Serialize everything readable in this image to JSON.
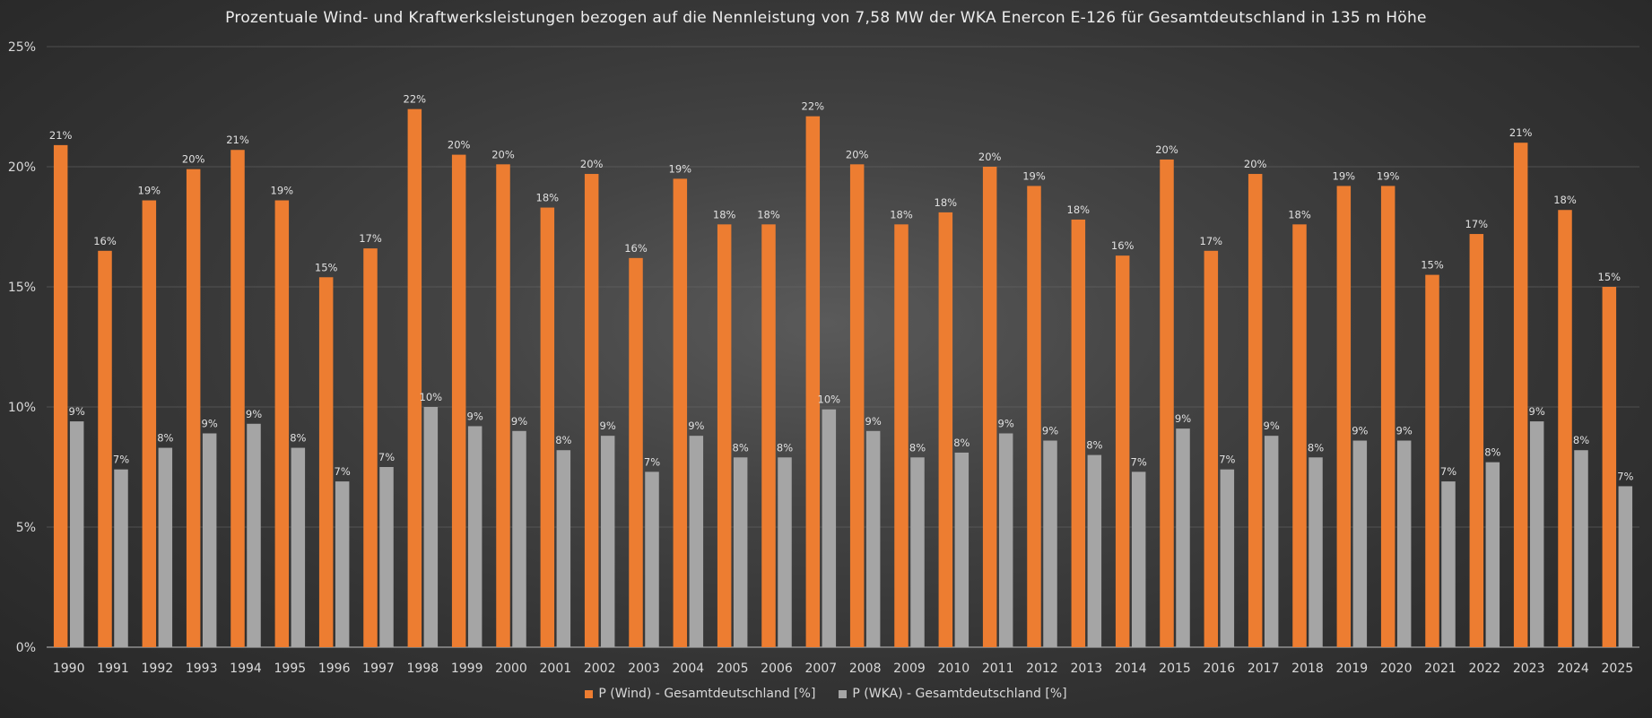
{
  "chart_data": {
    "type": "bar",
    "title": "Prozentuale Wind- und Kraftwerksleistungen bezogen auf die Nennleistung von 7,58 MW der WKA Enercon E-126 für Gesamtdeutschland in 135 m Höhe",
    "xlabel": "",
    "ylabel": "",
    "ylim": [
      0,
      25
    ],
    "yticks": [
      "0%",
      "5%",
      "10%",
      "15%",
      "20%",
      "25%"
    ],
    "ytick_values": [
      0,
      5,
      10,
      15,
      20,
      25
    ],
    "grid": true,
    "legend_position": "bottom",
    "categories": [
      "1990",
      "1991",
      "1992",
      "1993",
      "1994",
      "1995",
      "1996",
      "1997",
      "1998",
      "1999",
      "2000",
      "2001",
      "2002",
      "2003",
      "2004",
      "2005",
      "2006",
      "2007",
      "2008",
      "2009",
      "2010",
      "2011",
      "2012",
      "2013",
      "2014",
      "2015",
      "2016",
      "2017",
      "2018",
      "2019",
      "2020",
      "2021",
      "2022",
      "2023",
      "2024",
      "2025"
    ],
    "series": [
      {
        "name": "P (Wind) - Gesamtdeutschland [%]",
        "color": "#ed7d31",
        "values": [
          20.9,
          16.5,
          18.6,
          19.9,
          20.7,
          18.6,
          15.4,
          16.6,
          22.4,
          20.5,
          20.1,
          18.3,
          19.7,
          16.2,
          19.5,
          17.6,
          17.6,
          22.1,
          20.1,
          17.6,
          18.1,
          20.0,
          19.2,
          17.8,
          16.3,
          20.3,
          16.5,
          19.7,
          17.6,
          19.2,
          19.2,
          15.5,
          17.2,
          21.0,
          18.2,
          15.0
        ],
        "labels": [
          "21%",
          "16%",
          "19%",
          "20%",
          "21%",
          "19%",
          "15%",
          "17%",
          "22%",
          "20%",
          "20%",
          "18%",
          "20%",
          "16%",
          "19%",
          "18%",
          "18%",
          "22%",
          "20%",
          "18%",
          "18%",
          "20%",
          "19%",
          "18%",
          "16%",
          "20%",
          "17%",
          "20%",
          "18%",
          "19%",
          "19%",
          "15%",
          "17%",
          "21%",
          "18%",
          "15%"
        ]
      },
      {
        "name": "P (WKA) - Gesamtdeutschland [%]",
        "color": "#a5a5a5",
        "values": [
          9.4,
          7.4,
          8.3,
          8.9,
          9.3,
          8.3,
          6.9,
          7.5,
          10.0,
          9.2,
          9.0,
          8.2,
          8.8,
          7.3,
          8.8,
          7.9,
          7.9,
          9.9,
          9.0,
          7.9,
          8.1,
          8.9,
          8.6,
          8.0,
          7.3,
          9.1,
          7.4,
          8.8,
          7.9,
          8.6,
          8.6,
          6.9,
          7.7,
          9.4,
          8.2,
          6.7
        ],
        "labels": [
          "9%",
          "7%",
          "8%",
          "9%",
          "9%",
          "8%",
          "7%",
          "7%",
          "10%",
          "9%",
          "9%",
          "8%",
          "9%",
          "7%",
          "9%",
          "8%",
          "8%",
          "10%",
          "9%",
          "8%",
          "8%",
          "9%",
          "9%",
          "8%",
          "7%",
          "9%",
          "7%",
          "9%",
          "8%",
          "9%",
          "9%",
          "7%",
          "8%",
          "9%",
          "8%",
          "7%"
        ]
      }
    ]
  }
}
